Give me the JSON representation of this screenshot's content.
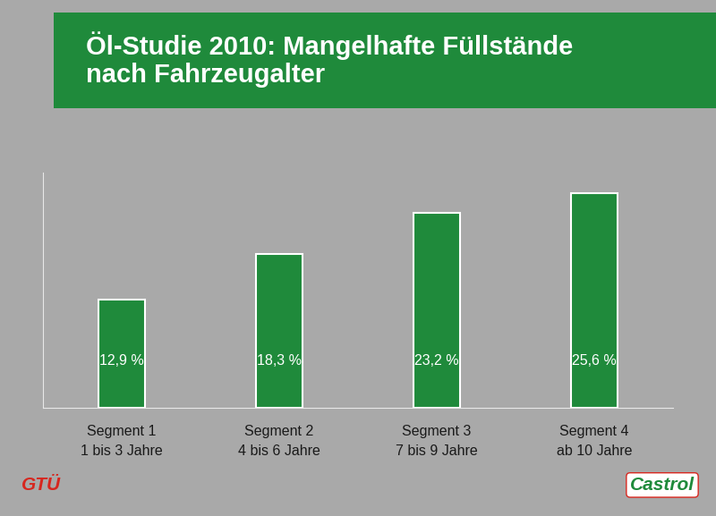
{
  "chart_data": {
    "type": "bar",
    "title": "Öl-Studie 2010: Mangelhafte Füllstände\nnach Fahrzeugalter",
    "categories": [
      "Segment 1\n1 bis 3 Jahre",
      "Segment 2\n4 bis 6 Jahre",
      "Segment 3\n7 bis 9 Jahre",
      "Segment 4\nab 10 Jahre"
    ],
    "values": [
      12.9,
      18.3,
      23.2,
      25.6
    ],
    "value_labels": [
      "12,9 %",
      "18,3 %",
      "23,2 %",
      "25,6 %"
    ],
    "data_labels": true,
    "color": "#1f8a3b",
    "ylim": [
      0,
      28
    ],
    "yticks": [],
    "tick_labels": "x",
    "grid": false,
    "annotations": [
      "GTÜ",
      "Castrol"
    ]
  }
}
